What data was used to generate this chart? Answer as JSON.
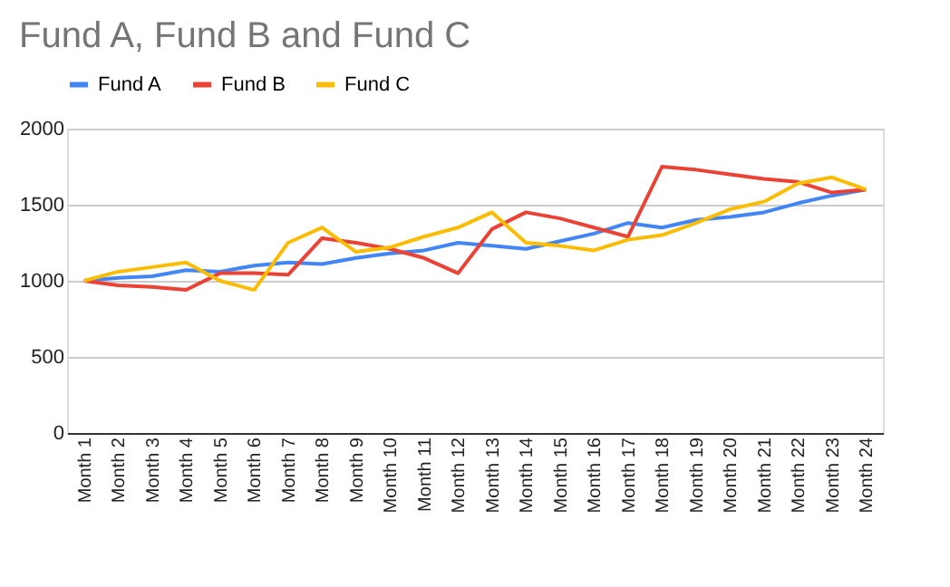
{
  "chart_data": {
    "type": "line",
    "title": "Fund A, Fund B and Fund C",
    "categories": [
      "Month 1",
      "Month 2",
      "Month 3",
      "Month 4",
      "Month 5",
      "Month 6",
      "Month 7",
      "Month 8",
      "Month 9",
      "Month 10",
      "Month 11",
      "Month 12",
      "Month 13",
      "Month 14",
      "Month 15",
      "Month 16",
      "Month 17",
      "Month 18",
      "Month 19",
      "Month 20",
      "Month 21",
      "Month 22",
      "Month 23",
      "Month 24"
    ],
    "series": [
      {
        "name": "Fund A",
        "color": "#4285f4",
        "values": [
          1000,
          1020,
          1030,
          1070,
          1060,
          1100,
          1120,
          1110,
          1150,
          1180,
          1200,
          1250,
          1230,
          1210,
          1260,
          1310,
          1380,
          1350,
          1400,
          1420,
          1450,
          1510,
          1560,
          1600
        ]
      },
      {
        "name": "Fund B",
        "color": "#ea4335",
        "values": [
          1000,
          970,
          960,
          940,
          1050,
          1050,
          1040,
          1280,
          1250,
          1210,
          1150,
          1050,
          1340,
          1450,
          1410,
          1350,
          1290,
          1750,
          1730,
          1700,
          1670,
          1650,
          1580,
          1600
        ]
      },
      {
        "name": "Fund C",
        "color": "#fbbc04",
        "values": [
          1000,
          1060,
          1090,
          1120,
          1000,
          940,
          1250,
          1350,
          1190,
          1220,
          1290,
          1350,
          1450,
          1250,
          1230,
          1200,
          1270,
          1300,
          1380,
          1470,
          1520,
          1640,
          1680,
          1600
        ]
      }
    ],
    "ylim": [
      0,
      2000
    ],
    "yticks": [
      0,
      500,
      1000,
      1500,
      2000
    ],
    "grid": "y",
    "legend": "top",
    "marker": "none",
    "line_style": "solid"
  }
}
